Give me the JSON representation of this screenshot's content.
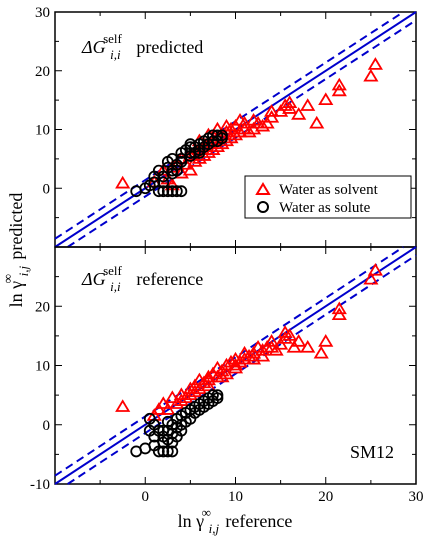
{
  "chart_data": {
    "type": "scatter",
    "xlabel": {
      "main": "ln γ",
      "sup": "∞",
      "sub": "i,j",
      "tail": "reference"
    },
    "ylabel": {
      "main": "ln γ",
      "sup": "∞",
      "sub": "i,j",
      "tail": "predicted"
    },
    "xlim": [
      -10,
      30
    ],
    "x_ticks": [
      "0",
      "10",
      "20",
      "30"
    ],
    "legend": {
      "position": "inside-right-top-panel",
      "entries": [
        {
          "label": "Water as solvent",
          "marker": "triangle",
          "color": "#ff0000"
        },
        {
          "label": "Water as solute",
          "marker": "circle",
          "color": "#000000"
        }
      ]
    },
    "reference_lines": {
      "parity": "y = x",
      "offsets": [
        -1.4,
        1.4
      ],
      "color": "#0000cc"
    },
    "panels": [
      {
        "name": "top",
        "label": {
          "main": "ΔG",
          "sup": "self",
          "sub": "i,i",
          "tail": "predicted"
        },
        "corner_text": "",
        "ylim": [
          -10,
          30
        ],
        "y_ticks": [
          "0",
          "10",
          "20",
          "30"
        ],
        "series": [
          {
            "name": "Water as solvent",
            "marker": "triangle",
            "color": "#ff0000",
            "points": [
              [
                -2.5,
                0.8
              ],
              [
                1,
                1
              ],
              [
                2,
                3
              ],
              [
                2.5,
                1.5
              ],
              [
                3,
                0.5
              ],
              [
                3,
                3.5
              ],
              [
                3.5,
                4
              ],
              [
                4,
                2.5
              ],
              [
                4,
                5
              ],
              [
                4.5,
                4
              ],
              [
                5,
                3
              ],
              [
                5,
                5.5
              ],
              [
                5.5,
                6
              ],
              [
                5.5,
                4.5
              ],
              [
                6,
                5
              ],
              [
                6,
                6.5
              ],
              [
                6.5,
                7
              ],
              [
                6.5,
                5.5
              ],
              [
                7,
                6
              ],
              [
                7,
                7.5
              ],
              [
                7.5,
                6.5
              ],
              [
                7.5,
                8
              ],
              [
                8,
                7
              ],
              [
                8,
                8.5
              ],
              [
                8.5,
                7.5
              ],
              [
                8.5,
                9
              ],
              [
                9,
                8
              ],
              [
                9,
                9.5
              ],
              [
                9.5,
                8.5
              ],
              [
                9.5,
                10
              ],
              [
                10,
                9
              ],
              [
                10,
                10.5
              ],
              [
                10.5,
                9.5
              ],
              [
                11,
                10
              ],
              [
                11,
                11
              ],
              [
                11.5,
                9.5
              ],
              [
                12,
                10
              ],
              [
                12.5,
                11
              ],
              [
                13,
                10.5
              ],
              [
                13.5,
                11
              ],
              [
                14,
                12
              ],
              [
                15,
                13
              ],
              [
                15.5,
                14
              ],
              [
                16,
                13.5
              ],
              [
                17,
                12.5
              ],
              [
                18,
                14
              ],
              [
                19,
                11
              ],
              [
                20,
                15
              ],
              [
                21.5,
                16.5
              ],
              [
                21.5,
                17.5
              ],
              [
                25,
                19
              ],
              [
                25.5,
                21
              ],
              [
                6,
                8
              ],
              [
                7,
                9
              ],
              [
                8,
                10
              ],
              [
                9,
                10.5
              ],
              [
                10.5,
                11.5
              ],
              [
                12,
                11.5
              ],
              [
                14,
                13
              ],
              [
                16,
                14.5
              ]
            ]
          },
          {
            "name": "Water as solute",
            "marker": "circle",
            "color": "#000000",
            "points": [
              [
                -1,
                -0.5
              ],
              [
                0,
                0
              ],
              [
                0.5,
                0.5
              ],
              [
                1,
                1
              ],
              [
                1,
                2
              ],
              [
                1.5,
                -0.5
              ],
              [
                1.5,
                3
              ],
              [
                2,
                2
              ],
              [
                2,
                -0.5
              ],
              [
                2.5,
                3.5
              ],
              [
                2.5,
                4.5
              ],
              [
                2.5,
                -0.5
              ],
              [
                3,
                3
              ],
              [
                3,
                5
              ],
              [
                3,
                -0.5
              ],
              [
                3.5,
                4
              ],
              [
                3.5,
                -0.5
              ],
              [
                4,
                5
              ],
              [
                4,
                6
              ],
              [
                4,
                -0.5
              ],
              [
                4.5,
                6.5
              ],
              [
                5,
                6
              ],
              [
                5,
                7
              ],
              [
                5,
                7.5
              ],
              [
                5.5,
                6
              ],
              [
                5.5,
                7
              ],
              [
                6,
                6.5
              ],
              [
                6,
                7.5
              ],
              [
                6.5,
                7
              ],
              [
                6.5,
                8
              ],
              [
                7,
                7.5
              ],
              [
                7,
                8.5
              ],
              [
                7.5,
                8
              ],
              [
                7.5,
                9
              ],
              [
                8,
                8
              ],
              [
                8,
                9
              ],
              [
                8.5,
                8.5
              ],
              [
                8.5,
                9
              ],
              [
                3,
                2.5
              ],
              [
                4,
                4.5
              ],
              [
                5,
                5.5
              ],
              [
                6,
                6
              ],
              [
                2,
                1
              ],
              [
                3.5,
                3
              ]
            ]
          }
        ]
      },
      {
        "name": "bottom",
        "label": {
          "main": "ΔG",
          "sup": "self",
          "sub": "i,i",
          "tail": "reference"
        },
        "corner_text": "SM12",
        "ylim": [
          -10,
          30
        ],
        "y_ticks": [
          "-10",
          "0",
          "10",
          "20"
        ],
        "series": [
          {
            "name": "Water as solvent",
            "marker": "triangle",
            "color": "#ff0000",
            "points": [
              [
                -2.5,
                3
              ],
              [
                1,
                1.5
              ],
              [
                1.5,
                2.5
              ],
              [
                2,
                3.5
              ],
              [
                2.5,
                2.5
              ],
              [
                3,
                4.5
              ],
              [
                3.5,
                3.5
              ],
              [
                4,
                5
              ],
              [
                4.5,
                4.5
              ],
              [
                5,
                6
              ],
              [
                5,
                5
              ],
              [
                5.5,
                6.5
              ],
              [
                6,
                6
              ],
              [
                6,
                7.5
              ],
              [
                6.5,
                7
              ],
              [
                7,
                8
              ],
              [
                7,
                6.5
              ],
              [
                7.5,
                8.5
              ],
              [
                8,
                8
              ],
              [
                8,
                9.5
              ],
              [
                8.5,
                9
              ],
              [
                9,
                10
              ],
              [
                9,
                8.5
              ],
              [
                9.5,
                10.5
              ],
              [
                10,
                10
              ],
              [
                10,
                11
              ],
              [
                10.5,
                10.5
              ],
              [
                11,
                11
              ],
              [
                11,
                12
              ],
              [
                11.5,
                11.5
              ],
              [
                12,
                12
              ],
              [
                12.5,
                13
              ],
              [
                13,
                12.5
              ],
              [
                13.5,
                13
              ],
              [
                14,
                14
              ],
              [
                14,
                13
              ],
              [
                15,
                13.5
              ],
              [
                15.5,
                14.5
              ],
              [
                15.5,
                15.5
              ],
              [
                16,
                15
              ],
              [
                16.5,
                13
              ],
              [
                17,
                14
              ],
              [
                18,
                13
              ],
              [
                19.5,
                12
              ],
              [
                20,
                14
              ],
              [
                21.5,
                18.5
              ],
              [
                21.5,
                19.5
              ],
              [
                25,
                24.5
              ],
              [
                25.5,
                26
              ],
              [
                4,
                4
              ],
              [
                5.5,
                5.5
              ],
              [
                7,
                7.5
              ],
              [
                8.5,
                8
              ],
              [
                10,
                9.5
              ],
              [
                12,
                11
              ],
              [
                13,
                11.5
              ],
              [
                14.5,
                12.5
              ]
            ]
          },
          {
            "name": "Water as solute",
            "marker": "circle",
            "color": "#000000",
            "points": [
              [
                -1,
                -4.5
              ],
              [
                0,
                -4
              ],
              [
                0.5,
                -1
              ],
              [
                0.5,
                1
              ],
              [
                1,
                0
              ],
              [
                1,
                -2
              ],
              [
                1,
                -3.5
              ],
              [
                1.5,
                -1
              ],
              [
                1.5,
                -4.5
              ],
              [
                2,
                -2
              ],
              [
                2,
                -3
              ],
              [
                2,
                -4.5
              ],
              [
                2.5,
                -1
              ],
              [
                2.5,
                -2.5
              ],
              [
                2.5,
                -4.5
              ],
              [
                3,
                -1.5
              ],
              [
                3,
                -3
              ],
              [
                3,
                0
              ],
              [
                3,
                -4.5
              ],
              [
                3.5,
                -2
              ],
              [
                3.5,
                1
              ],
              [
                4,
                0
              ],
              [
                4,
                1.5
              ],
              [
                4,
                -1
              ],
              [
                4.5,
                2
              ],
              [
                4.5,
                0.5
              ],
              [
                5,
                2.5
              ],
              [
                5,
                1
              ],
              [
                5.5,
                3
              ],
              [
                5.5,
                2
              ],
              [
                6,
                3.5
              ],
              [
                6,
                2.5
              ],
              [
                6.5,
                4
              ],
              [
                6.5,
                3
              ],
              [
                7,
                4.5
              ],
              [
                7,
                3.5
              ],
              [
                7.5,
                4
              ],
              [
                7.5,
                5
              ],
              [
                8,
                4.5
              ],
              [
                8,
                5
              ],
              [
                2,
                -1
              ],
              [
                3.5,
                -0.5
              ],
              [
                2.5,
                0.5
              ]
            ]
          }
        ]
      }
    ]
  }
}
